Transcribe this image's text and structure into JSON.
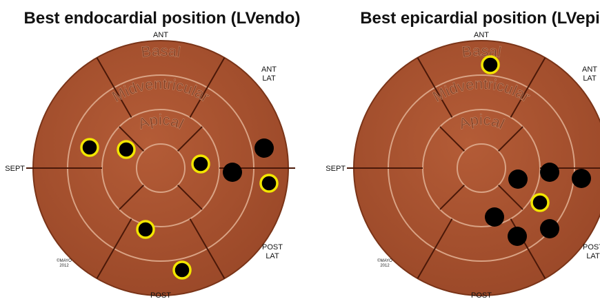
{
  "panels": [
    {
      "title": "Best endocardial position (LVendo)",
      "ant": "ANT",
      "ant_lat": [
        "ANT",
        "LAT"
      ],
      "sept": "SEPT",
      "post": "POST",
      "post_lat": [
        "POST",
        "LAT"
      ],
      "basal": "Basal",
      "mid": "Midventricular",
      "apical": "Apical",
      "copyright": [
        "©MAYO",
        "2012"
      ]
    },
    {
      "title": "Best epicardial position (LVepi)",
      "ant": "ANT",
      "ant_lat": [
        "ANT",
        "LAT"
      ],
      "sept": "SEPT",
      "post": "POST",
      "post_lat": [
        "POST",
        "LAT"
      ],
      "basal": "Basal",
      "mid": "Midventricular",
      "apical": "Apical",
      "copyright": [
        "©MAYO",
        "2012"
      ]
    }
  ]
}
